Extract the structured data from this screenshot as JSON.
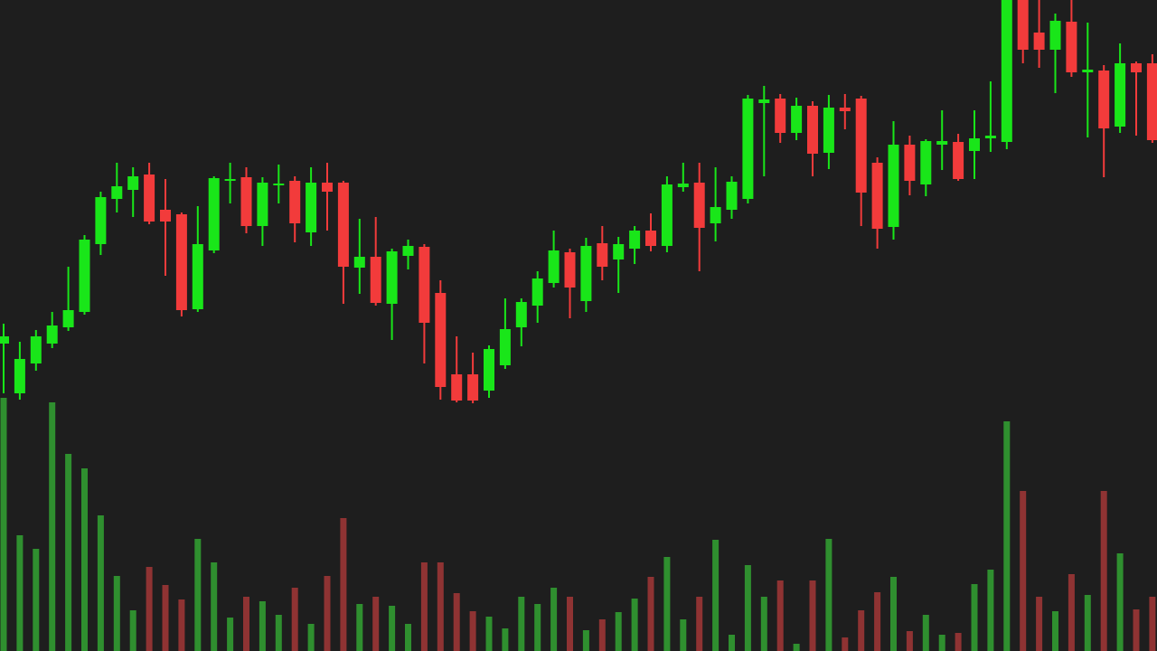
{
  "chart_data": {
    "type": "candlestick",
    "categories": [
      null,
      null,
      null,
      null,
      null,
      null,
      null,
      null,
      null,
      null,
      null,
      null,
      null,
      null,
      null,
      null,
      null,
      null,
      null,
      null,
      null,
      null,
      null,
      null,
      null,
      null,
      null,
      null,
      null,
      null,
      null,
      null,
      null,
      null,
      null,
      null,
      null,
      null,
      null,
      null,
      null,
      null,
      null,
      null,
      null,
      null,
      null,
      null,
      null,
      null,
      null,
      null,
      null,
      null,
      null,
      null,
      null,
      null,
      null,
      null,
      null,
      null,
      null,
      null,
      null,
      null,
      null,
      null,
      null,
      null,
      null,
      null
    ],
    "open": [
      340,
      285,
      318,
      340,
      358,
      375,
      450,
      500,
      510,
      527,
      488,
      483,
      378,
      443,
      520,
      524,
      470,
      515,
      520,
      463,
      518,
      518,
      424,
      436,
      384,
      437,
      447,
      396,
      306,
      306,
      288,
      316,
      358,
      382,
      407,
      441,
      387,
      451,
      433,
      445,
      465,
      448,
      513,
      518,
      473,
      488,
      500,
      606,
      611,
      573,
      603,
      551,
      601,
      611,
      540,
      469,
      560,
      516,
      560,
      563,
      553,
      567,
      563,
      720,
      684,
      665,
      696,
      640,
      642,
      580,
      650,
      650
    ],
    "high": [
      362,
      342,
      355,
      375,
      425,
      460,
      508,
      540,
      535,
      540,
      522,
      485,
      492,
      525,
      540,
      535,
      524,
      538,
      525,
      535,
      540,
      520,
      478,
      480,
      445,
      455,
      450,
      410,
      348,
      330,
      338,
      390,
      390,
      420,
      465,
      445,
      457,
      470,
      458,
      470,
      484,
      525,
      540,
      540,
      535,
      525,
      615,
      625,
      616,
      612,
      608,
      615,
      616,
      614,
      546,
      586,
      570,
      566,
      598,
      572,
      598,
      630,
      720,
      720,
      720,
      705,
      720,
      695,
      648,
      672,
      652,
      660
    ],
    "low": [
      285,
      278,
      310,
      335,
      354,
      372,
      438,
      485,
      480,
      472,
      415,
      370,
      375,
      440,
      495,
      462,
      448,
      495,
      452,
      448,
      465,
      384,
      395,
      382,
      344,
      422,
      318,
      278,
      275,
      274,
      280,
      312,
      337,
      363,
      402,
      368,
      375,
      410,
      396,
      428,
      442,
      441,
      508,
      420,
      453,
      478,
      495,
      525,
      562,
      565,
      525,
      533,
      577,
      470,
      445,
      455,
      504,
      503,
      532,
      520,
      522,
      552,
      555,
      650,
      645,
      617,
      635,
      568,
      524,
      573,
      570,
      562
    ],
    "close": [
      348,
      323,
      348,
      360,
      377,
      455,
      502,
      514,
      525,
      475,
      475,
      377,
      450,
      523,
      522,
      470,
      518,
      517,
      473,
      518,
      508,
      425,
      436,
      385,
      442,
      448,
      363,
      292,
      277,
      277,
      334,
      356,
      386,
      412,
      443,
      402,
      448,
      425,
      450,
      465,
      448,
      516,
      517,
      468,
      491,
      519,
      611,
      610,
      573,
      603,
      550,
      601,
      597,
      507,
      467,
      560,
      520,
      564,
      564,
      522,
      567,
      570,
      720,
      665,
      665,
      697,
      640,
      643,
      578,
      650,
      640,
      565
    ],
    "volume": [
      280,
      128,
      113,
      275,
      218,
      202,
      150,
      83,
      45,
      93,
      73,
      57,
      124,
      98,
      37,
      60,
      55,
      40,
      70,
      30,
      83,
      147,
      52,
      60,
      50,
      30,
      98,
      98,
      64,
      44,
      38,
      25,
      60,
      52,
      70,
      60,
      23,
      35,
      43,
      58,
      82,
      104,
      35,
      60,
      123,
      18,
      95,
      60,
      78,
      8,
      78,
      124,
      15,
      45,
      65,
      82,
      22,
      40,
      18,
      20,
      74,
      90,
      254,
      177,
      60,
      44,
      85,
      62,
      177,
      108,
      46,
      60
    ],
    "ylim": [
      0,
      720
    ],
    "y2lim": [
      0,
      720
    ],
    "up_color": "#19e619",
    "down_color": "#f23b3b",
    "volume_up_color": "#2f8f2f",
    "volume_down_color": "#8f3333",
    "background": "#1e1e1e"
  }
}
